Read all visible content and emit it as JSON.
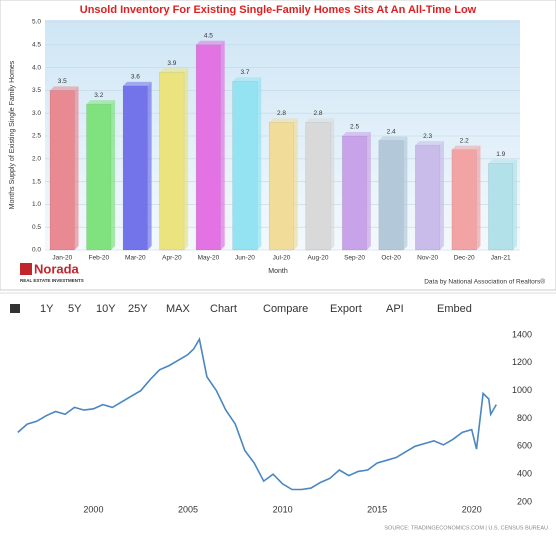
{
  "chart_data": [
    {
      "type": "bar",
      "title": "Unsold Inventory For Existing Single-Family Homes Sits At An All-Time Low",
      "y_label": "Months Supply of Existing Single Family Homes",
      "x_label": "Month",
      "categories": [
        "Jan-20",
        "Feb-20",
        "Mar-20",
        "Apr-20",
        "May-20",
        "Jun-20",
        "Jul-20",
        "Aug-20",
        "Sep-20",
        "Oct-20",
        "Nov-20",
        "Dec-20",
        "Jan-21"
      ],
      "values": [
        3.5,
        3.2,
        3.6,
        3.9,
        4.5,
        3.7,
        2.8,
        2.8,
        2.5,
        2.4,
        2.3,
        2.2,
        1.9
      ],
      "colors": [
        "#e98991",
        "#80e27f",
        "#7474ea",
        "#ebe37d",
        "#e372e3",
        "#93e3f2",
        "#f1dc9a",
        "#d9d9d9",
        "#c9a3ea",
        "#b3c9da",
        "#c9bbea",
        "#f2a3a3",
        "#b3e1ea"
      ],
      "ylim": [
        0,
        5
      ],
      "yticks": [
        {
          "value": 0,
          "label": "0.0"
        },
        0.5,
        {
          "value": 1,
          "label": "1.0"
        },
        1.5,
        {
          "value": 2,
          "label": "2.0"
        },
        2.5,
        {
          "value": 3,
          "label": "3.0"
        },
        3.5,
        {
          "value": 4,
          "label": "4.0"
        },
        4.5,
        {
          "value": 5,
          "label": "5.0"
        }
      ],
      "source": "Data by National Association of Realtors®"
    },
    {
      "type": "line",
      "color": "#4a86c1",
      "x": [
        1996,
        1996.5,
        1997,
        1997.5,
        1998,
        1998.5,
        1999,
        1999.5,
        2000,
        2000.5,
        2001,
        2001.5,
        2002,
        2002.5,
        2003,
        2003.5,
        2004,
        2004.5,
        2005,
        2005.3,
        2005.6,
        2006,
        2006.5,
        2007,
        2007.5,
        2008,
        2008.5,
        2009,
        2009.5,
        2010,
        2010.5,
        2011,
        2011.5,
        2012,
        2012.5,
        2013,
        2013.5,
        2014,
        2014.5,
        2015,
        2015.5,
        2016,
        2016.5,
        2017,
        2017.5,
        2018,
        2018.5,
        2019,
        2019.5,
        2020,
        2020.25,
        2020.6,
        2020.9,
        2021,
        2021.3
      ],
      "values": [
        700,
        760,
        780,
        820,
        850,
        830,
        880,
        860,
        870,
        900,
        880,
        920,
        960,
        1000,
        1080,
        1150,
        1180,
        1220,
        1260,
        1300,
        1370,
        1100,
        1000,
        860,
        760,
        570,
        480,
        350,
        400,
        330,
        290,
        290,
        300,
        340,
        370,
        430,
        390,
        420,
        430,
        480,
        500,
        520,
        560,
        600,
        620,
        640,
        610,
        650,
        700,
        720,
        580,
        980,
        940,
        830,
        900
      ],
      "xlim": [
        1995.8,
        2021.6
      ],
      "ylim": [
        200,
        1400
      ],
      "xticks": [
        2000,
        2005,
        2010,
        2015,
        2020
      ],
      "yticks": [
        200,
        400,
        600,
        800,
        1000,
        1200,
        1400
      ],
      "source": "SOURCE: TRADINGECONOMICS.COM | U.S. CENSUS BUREAU"
    }
  ],
  "logo": {
    "name": "Norada",
    "tagline": "REAL ESTATE INVESTMENTS"
  },
  "toolbar": [
    "1Y",
    "5Y",
    "10Y",
    "25Y",
    "MAX",
    "Chart",
    "Compare",
    "Export",
    "API",
    "Embed"
  ]
}
